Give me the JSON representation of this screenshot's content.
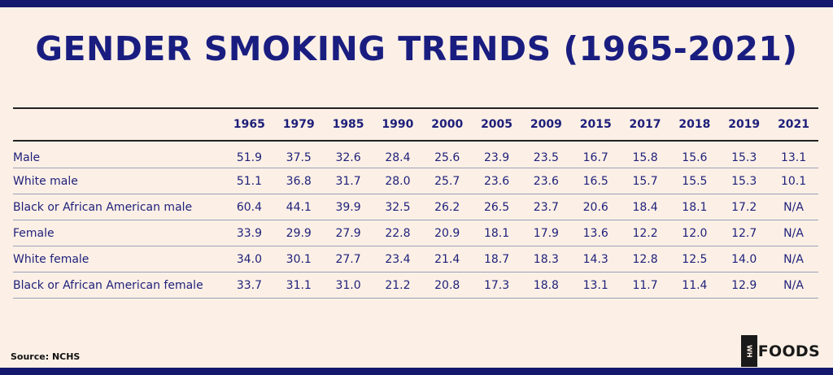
{
  "title": "GENDER SMOKING TRENDS (1965-2021)",
  "source": "Source: NCHS",
  "logo": {
    "mark": "WH",
    "text": "FOODS"
  },
  "colors": {
    "background": "#fcf0e6",
    "accent": "#14196e",
    "text": "#1e1f7a"
  },
  "chart_data": {
    "type": "table",
    "columns": [
      "1965",
      "1979",
      "1985",
      "1990",
      "2000",
      "2005",
      "2009",
      "2015",
      "2017",
      "2018",
      "2019",
      "2021"
    ],
    "rows": [
      {
        "label": "Male",
        "values": [
          "51.9",
          "37.5",
          "32.6",
          "28.4",
          "25.6",
          "23.9",
          "23.5",
          "16.7",
          "15.8",
          "15.6",
          "15.3",
          "13.1"
        ]
      },
      {
        "label": "White male",
        "values": [
          "51.1",
          "36.8",
          "31.7",
          "28.0",
          "25.7",
          "23.6",
          "23.6",
          "16.5",
          "15.7",
          "15.5",
          "15.3",
          "10.1"
        ]
      },
      {
        "label": "Black or African American male",
        "values": [
          "60.4",
          "44.1",
          "39.9",
          "32.5",
          "26.2",
          "26.5",
          "23.7",
          "20.6",
          "18.4",
          "18.1",
          "17.2",
          "N/A"
        ]
      },
      {
        "label": "Female",
        "values": [
          "33.9",
          "29.9",
          "27.9",
          "22.8",
          "20.9",
          "18.1",
          "17.9",
          "13.6",
          "12.2",
          "12.0",
          "12.7",
          "N/A"
        ]
      },
      {
        "label": "White female",
        "values": [
          "34.0",
          "30.1",
          "27.7",
          "23.4",
          "21.4",
          "18.7",
          "18.3",
          "14.3",
          "12.8",
          "12.5",
          "14.0",
          "N/A"
        ]
      },
      {
        "label": "Black or African American female",
        "values": [
          "33.7",
          "31.1",
          "31.0",
          "21.2",
          "20.8",
          "17.3",
          "18.8",
          "13.1",
          "11.7",
          "11.4",
          "12.9",
          "N/A"
        ]
      }
    ]
  }
}
